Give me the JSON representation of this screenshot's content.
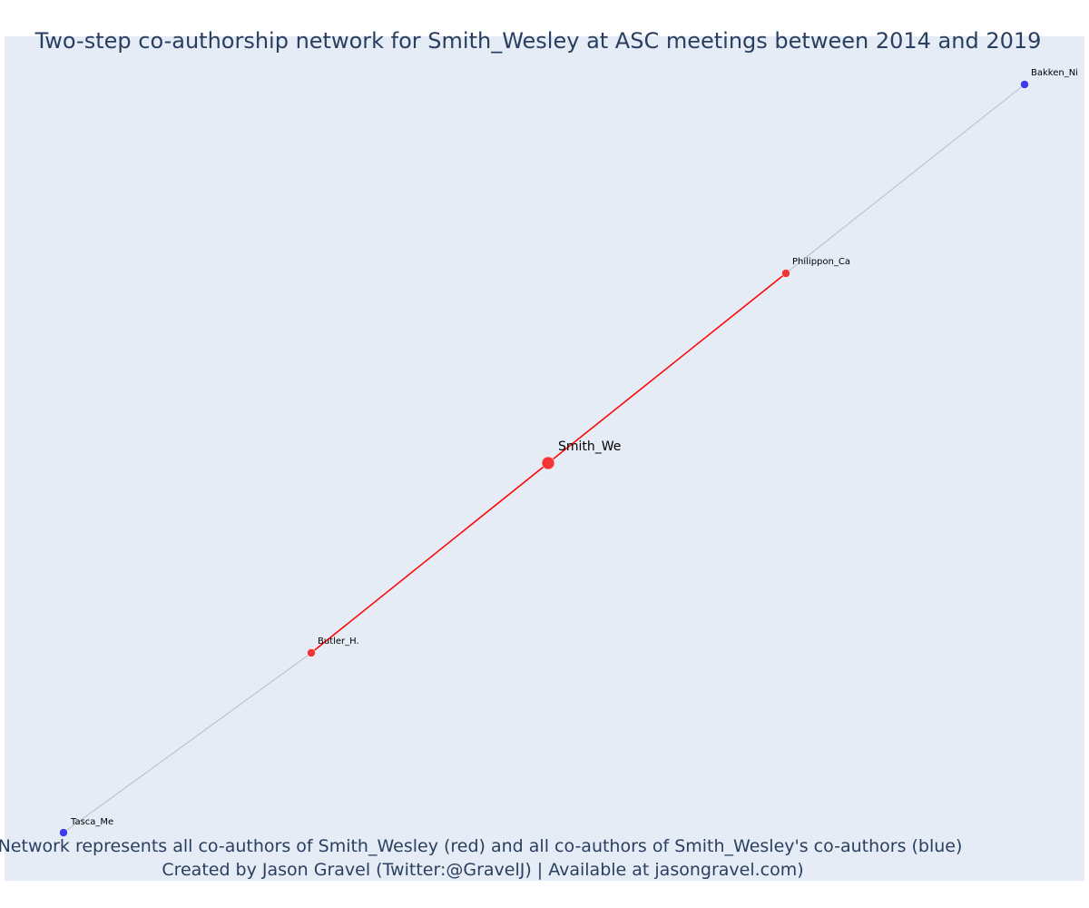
{
  "title": "Two-step co-authorship network for Smith_Wesley at ASC meetings between 2014 and 2019",
  "nodes": [
    {
      "label": "Bakken_Ni"
    },
    {
      "label": "Philippon_Ca"
    },
    {
      "label": "Smith_We"
    },
    {
      "label": "Butler_H."
    },
    {
      "label": "Tasca_Me"
    }
  ],
  "footer": [
    "Network represents all co-authors of Smith_Wesley (red) and all co-authors of Smith_Wesley's co-authors (blue)",
    "Created by Jason Gravel (Twitter:@GravelJ) | Available at jasongravel.com)"
  ]
}
